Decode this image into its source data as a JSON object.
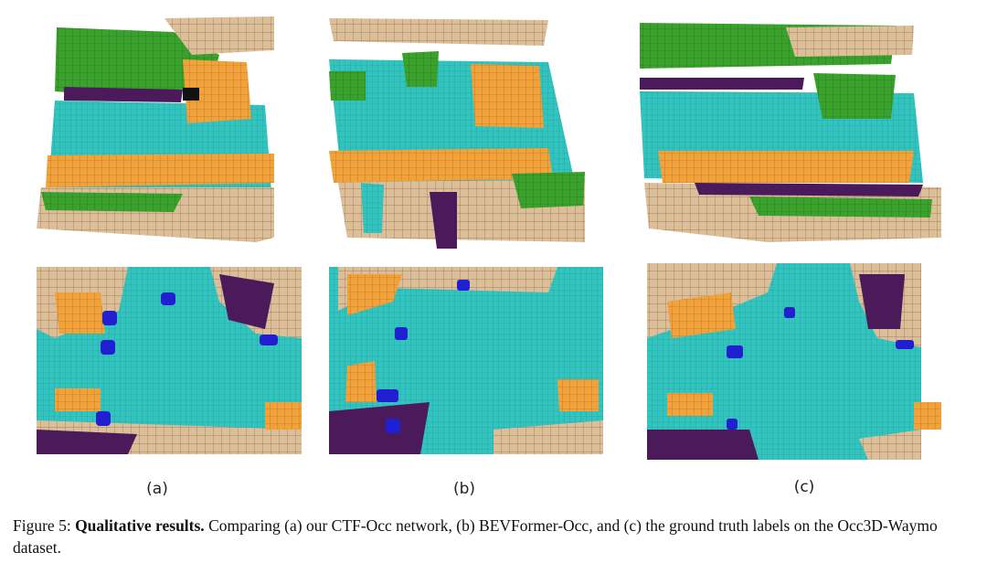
{
  "figure": {
    "panels": [
      {
        "label": "(a)"
      },
      {
        "label": "(b)"
      },
      {
        "label": "(c)"
      }
    ],
    "caption": {
      "number": "Figure 5:",
      "title": "Qualitative results.",
      "text": "Comparing (a) our CTF-Occ network, (b) BEVFormer-Occ, and (c) the ground truth labels on the Occ3D-Waymo dataset."
    }
  }
}
